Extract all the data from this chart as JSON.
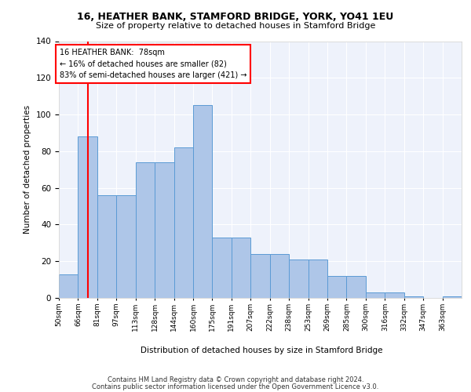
{
  "title1": "16, HEATHER BANK, STAMFORD BRIDGE, YORK, YO41 1EU",
  "title2": "Size of property relative to detached houses in Stamford Bridge",
  "xlabel": "Distribution of detached houses by size in Stamford Bridge",
  "ylabel": "Number of detached properties",
  "bins": [
    "50sqm",
    "66sqm",
    "81sqm",
    "97sqm",
    "113sqm",
    "128sqm",
    "144sqm",
    "160sqm",
    "175sqm",
    "191sqm",
    "207sqm",
    "222sqm",
    "238sqm",
    "253sqm",
    "269sqm",
    "285sqm",
    "300sqm",
    "316sqm",
    "332sqm",
    "347sqm",
    "363sqm"
  ],
  "bar_heights": [
    13,
    88,
    56,
    56,
    74,
    74,
    82,
    105,
    33,
    33,
    24,
    24,
    21,
    21,
    12,
    12,
    3,
    3,
    1,
    0,
    1
  ],
  "bar_color": "#aec6e8",
  "bar_edge_color": "#5b9bd5",
  "vline_color": "red",
  "annotation_text": "16 HEATHER BANK:  78sqm\n← 16% of detached houses are smaller (82)\n83% of semi-detached houses are larger (421) →",
  "ylim": [
    0,
    140
  ],
  "yticks": [
    0,
    20,
    40,
    60,
    80,
    100,
    120,
    140
  ],
  "background_color": "#eef2fb",
  "footer1": "Contains HM Land Registry data © Crown copyright and database right 2024.",
  "footer2": "Contains public sector information licensed under the Open Government Licence v3.0."
}
